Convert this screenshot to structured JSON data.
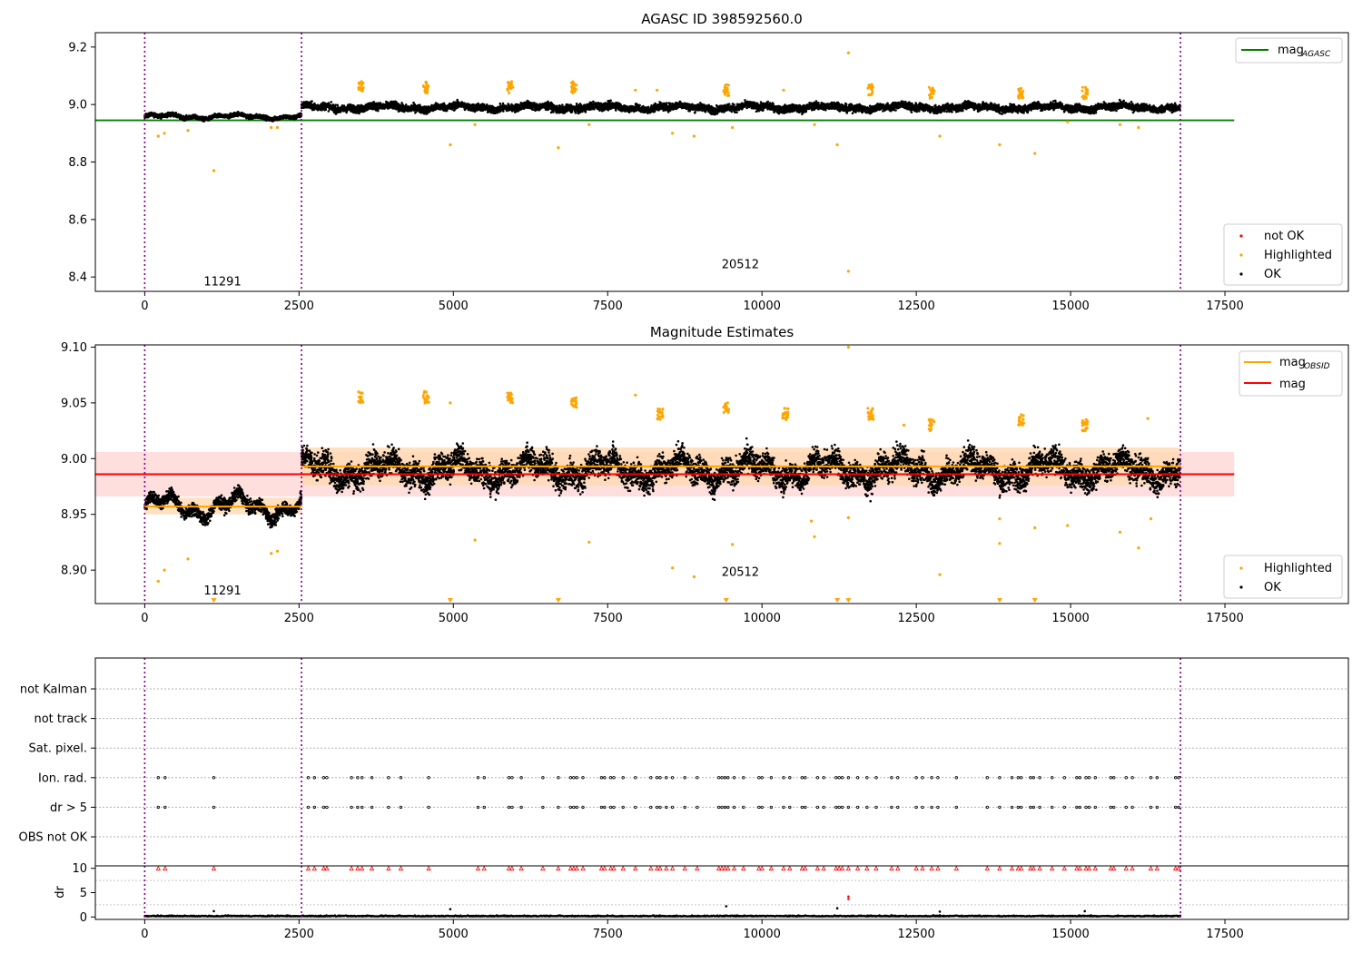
{
  "colors": {
    "highlighted": "#ffa500",
    "ok": "#000000",
    "not_ok": "#ff0000",
    "mag_agasc": "#008000",
    "mag_obsid": "#ffa500",
    "mag": "#ff0000",
    "obs_boundary": "#800080",
    "band_mag": "#ffd6d6",
    "band_obsid": "#ffd9b3"
  },
  "chart_data": [
    {
      "id": "agasc",
      "type": "scatter",
      "title": "AGASC ID 398592560.0",
      "xlim": [
        -800,
        19500
      ],
      "ylim": [
        8.35,
        9.25
      ],
      "xticks": [
        0,
        2500,
        5000,
        7500,
        10000,
        12500,
        15000,
        17500
      ],
      "xtick_labels": [
        "0",
        "2500",
        "5000",
        "7500",
        "10000",
        "12500",
        "15000",
        "17500"
      ],
      "yticks": [
        8.4,
        8.6,
        8.8,
        9.0,
        9.2
      ],
      "ytick_labels": [
        "8.4",
        "8.6",
        "8.8",
        "9.0",
        "9.2"
      ],
      "obs_boundaries": [
        0,
        2540,
        16780
      ],
      "obs_labels": [
        {
          "text": "11291",
          "x": 1260,
          "y": 8.37
        },
        {
          "text": "20512",
          "x": 9650,
          "y": 8.43
        }
      ],
      "lines": [
        {
          "name": "mag_AGASC",
          "y": 8.945,
          "x": [
            -800,
            17650
          ],
          "color": "#008000"
        }
      ],
      "series": [
        {
          "name": "not OK",
          "color": "#ff0000",
          "points": []
        },
        {
          "name": "Highlighted",
          "color": "#ffa500",
          "clusters": [
            [
              3500,
              9.06
            ],
            [
              4560,
              9.06
            ],
            [
              5920,
              9.06
            ],
            [
              6950,
              9.06
            ],
            [
              9420,
              9.05
            ],
            [
              11760,
              9.05
            ],
            [
              12750,
              9.04
            ],
            [
              15230,
              9.04
            ],
            [
              14200,
              9.04
            ]
          ],
          "points": [
            [
              220,
              8.89
            ],
            [
              320,
              8.9
            ],
            [
              700,
              8.91
            ],
            [
              1120,
              8.77
            ],
            [
              2050,
              8.92
            ],
            [
              2150,
              8.92
            ],
            [
              4950,
              8.86
            ],
            [
              5350,
              8.93
            ],
            [
              6700,
              8.85
            ],
            [
              7200,
              8.93
            ],
            [
              8550,
              8.9
            ],
            [
              8900,
              8.89
            ],
            [
              9520,
              8.92
            ],
            [
              10350,
              9.05
            ],
            [
              10850,
              8.93
            ],
            [
              11220,
              8.86
            ],
            [
              11400,
              9.18
            ],
            [
              11400,
              8.42
            ],
            [
              12880,
              8.89
            ],
            [
              13850,
              8.86
            ],
            [
              14420,
              8.83
            ],
            [
              14950,
              8.94
            ],
            [
              15800,
              8.93
            ],
            [
              16100,
              8.92
            ],
            [
              7950,
              9.05
            ],
            [
              8300,
              9.05
            ]
          ]
        },
        {
          "name": "OK",
          "color": "#000000",
          "segments": [
            {
              "x": [
                0,
                2540
              ],
              "center": 8.958,
              "amp": 0.012
            },
            {
              "x": [
                2540,
                16780
              ],
              "center": 8.99,
              "amp": 0.022
            }
          ]
        }
      ],
      "legend_lines": [
        {
          "label": "mag",
          "sub": "AGASC",
          "color": "#008000"
        }
      ],
      "legend_points": [
        {
          "label": "not OK",
          "color": "#ff0000"
        },
        {
          "label": "Highlighted",
          "color": "#ffa500"
        },
        {
          "label": "OK",
          "color": "#000000"
        }
      ]
    },
    {
      "id": "estimates",
      "type": "scatter",
      "title": "Magnitude Estimates",
      "xlim": [
        -800,
        19500
      ],
      "ylim": [
        8.87,
        9.102
      ],
      "xticks": [
        0,
        2500,
        5000,
        7500,
        10000,
        12500,
        15000,
        17500
      ],
      "xtick_labels": [
        "0",
        "2500",
        "5000",
        "7500",
        "10000",
        "12500",
        "15000",
        "17500"
      ],
      "yticks": [
        8.9,
        8.95,
        9.0,
        9.05,
        9.1
      ],
      "ytick_labels": [
        "8.90",
        "8.95",
        "9.00",
        "9.05",
        "9.10"
      ],
      "obs_boundaries": [
        0,
        2540,
        16780
      ],
      "obs_labels": [
        {
          "text": "11291",
          "x": 1260,
          "y": 8.878
        },
        {
          "text": "20512",
          "x": 9650,
          "y": 8.895
        }
      ],
      "bands": [
        {
          "x": [
            -800,
            17650
          ],
          "y": [
            8.966,
            9.006
          ],
          "color": "#ffd6d6"
        },
        {
          "x": [
            0,
            2540
          ],
          "y": [
            8.95,
            8.965
          ],
          "color": "#ffd9b3"
        },
        {
          "x": [
            2540,
            16780
          ],
          "y": [
            8.976,
            9.01
          ],
          "color": "#ffd9b3"
        }
      ],
      "lines": [
        {
          "name": "mag",
          "y": 8.986,
          "x": [
            -800,
            17650
          ],
          "color": "#ff0000"
        },
        {
          "name": "mag_OBSID",
          "y": 8.957,
          "x": [
            0,
            2540
          ],
          "color": "#ffa500"
        },
        {
          "name": "mag_OBSID",
          "y": 8.993,
          "x": [
            2540,
            16780
          ],
          "color": "#ffa500"
        }
      ],
      "series": [
        {
          "name": "Highlighted",
          "color": "#ffa500",
          "clusters": [
            [
              3500,
              9.055
            ],
            [
              4560,
              9.055
            ],
            [
              5920,
              9.055
            ],
            [
              6950,
              9.05
            ],
            [
              9420,
              9.045
            ],
            [
              11760,
              9.04
            ],
            [
              14200,
              9.035
            ],
            [
              15230,
              9.03
            ],
            [
              12750,
              9.03
            ],
            [
              8350,
              9.04
            ],
            [
              10380,
              9.04
            ]
          ],
          "points": [
            [
              220,
              8.89
            ],
            [
              320,
              8.9
            ],
            [
              700,
              8.91
            ],
            [
              2050,
              8.915
            ],
            [
              2150,
              8.917
            ],
            [
              4950,
              9.05
            ],
            [
              5350,
              8.927
            ],
            [
              7200,
              8.925
            ],
            [
              7950,
              9.057
            ],
            [
              8550,
              8.902
            ],
            [
              8900,
              8.894
            ],
            [
              9520,
              8.923
            ],
            [
              10850,
              8.93
            ],
            [
              10800,
              8.944
            ],
            [
              11400,
              9.1
            ],
            [
              11400,
              8.947
            ],
            [
              12880,
              8.896
            ],
            [
              13850,
              8.924
            ],
            [
              13850,
              8.946
            ],
            [
              14420,
              8.938
            ],
            [
              14950,
              8.94
            ],
            [
              15800,
              8.934
            ],
            [
              16100,
              8.92
            ],
            [
              16300,
              8.946
            ],
            [
              16250,
              9.036
            ],
            [
              12300,
              9.03
            ]
          ],
          "clipped_low": [
            1120,
            4950,
            6700,
            9420,
            11220,
            11400,
            13850,
            14420
          ]
        },
        {
          "name": "OK",
          "color": "#000000",
          "segments": [
            {
              "x": [
                0,
                2540
              ],
              "center": 8.957,
              "amp": 0.01
            },
            {
              "x": [
                2540,
                16780
              ],
              "center": 8.99,
              "amp": 0.02
            }
          ]
        }
      ],
      "legend_lines": [
        {
          "label": "mag",
          "sub": "OBSID",
          "color": "#ffa500"
        },
        {
          "label": "mag",
          "sub": "",
          "color": "#ff0000"
        }
      ],
      "legend_points": [
        {
          "label": "Highlighted",
          "color": "#ffa500"
        },
        {
          "label": "OK",
          "color": "#000000"
        }
      ]
    },
    {
      "id": "flags",
      "type": "scatter",
      "title": "",
      "xlim": [
        -800,
        19500
      ],
      "categories": [
        "not Kalman",
        "not track",
        "Sat. pixel.",
        "Ion. rad.",
        "dr > 5",
        "OBS not OK"
      ],
      "obs_boundaries": [
        0,
        2540,
        16780
      ],
      "flag_x": [
        220,
        330,
        1120,
        2650,
        2750,
        2900,
        2950,
        3350,
        3450,
        3520,
        3680,
        3950,
        4150,
        4600,
        5400,
        5500,
        5900,
        5950,
        6100,
        6450,
        6700,
        6900,
        6950,
        7000,
        7100,
        7400,
        7450,
        7550,
        7600,
        7750,
        7950,
        8200,
        8300,
        8350,
        8450,
        8550,
        8750,
        8950,
        9300,
        9350,
        9400,
        9450,
        9550,
        9700,
        9950,
        10000,
        10150,
        10350,
        10450,
        10650,
        10700,
        10900,
        11000,
        11200,
        11250,
        11300,
        11400,
        11550,
        11700,
        11850,
        12100,
        12200,
        12500,
        12600,
        12750,
        12850,
        13150,
        13650,
        13850,
        14050,
        14150,
        14200,
        14350,
        14400,
        14500,
        14700,
        14900,
        15100,
        15150,
        15250,
        15300,
        15400,
        15650,
        15700,
        15900,
        16000,
        16300,
        16400,
        16700,
        16750
      ]
    },
    {
      "id": "dr",
      "type": "scatter",
      "ylabel": "dr",
      "xlim": [
        -800,
        19500
      ],
      "ylim": [
        -0.5,
        10.5
      ],
      "yticks": [
        0,
        5,
        10
      ],
      "ytick_labels": [
        "0",
        "5",
        "10"
      ],
      "xticks": [
        0,
        2500,
        5000,
        7500,
        10000,
        12500,
        15000,
        17500
      ],
      "xtick_labels": [
        "0",
        "2500",
        "5000",
        "7500",
        "10000",
        "12500",
        "15000",
        "17500"
      ],
      "obs_boundaries": [
        0,
        2540,
        16780
      ],
      "outliers": [
        [
          1120,
          1.2
        ],
        [
          4950,
          1.6
        ],
        [
          9420,
          2.2
        ],
        [
          11220,
          1.8
        ],
        [
          11400,
          3.7
        ],
        [
          11400,
          4.2
        ],
        [
          12880,
          1.1
        ],
        [
          15230,
          1.2
        ]
      ]
    }
  ]
}
